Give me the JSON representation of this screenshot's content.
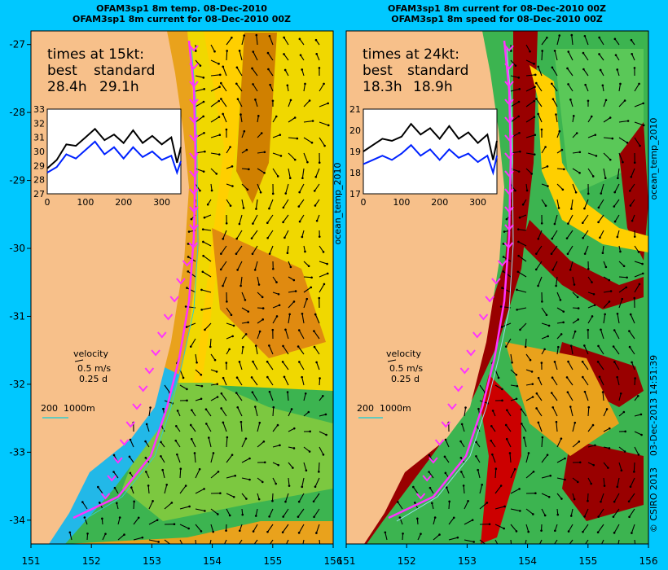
{
  "colors": {
    "background": "#00c8ff",
    "land": "#f7c08a",
    "track": "#ff33ff",
    "best_line": "#000000",
    "standard_line": "#0022ff",
    "isobath": "#33cccc"
  },
  "credits": {
    "copyright": "© CSIRO 2013",
    "timestamp": "03-Dec-2013 14:51:39"
  },
  "panels": [
    {
      "title_line1": "OFAM3sp1 8m temp. 08-Dec-2010",
      "title_line2": "OFAM3sp1 8m current for 08-Dec-2010 00Z",
      "side_label": "ocean_temp_2010",
      "times_heading": "times at 15kt:",
      "best_label": "best",
      "standard_label": "standard",
      "best_time": "28.4h",
      "standard_time": "29.1h",
      "velocity_label": "velocity",
      "velocity_speed": "0.5 m/s",
      "velocity_time": "0.25 d",
      "isobath_label": "200  1000m",
      "x_ticks": [
        "151",
        "152",
        "153",
        "154",
        "155",
        "156"
      ],
      "y_ticks": [
        "-27",
        "-28",
        "-29",
        "-30",
        "-31",
        "-32",
        "-33",
        "-34"
      ],
      "inset": {
        "y_ticks": [
          "27",
          "28",
          "29",
          "30",
          "31",
          "32",
          "33"
        ],
        "x_ticks": [
          "0",
          "100",
          "200",
          "300"
        ]
      }
    },
    {
      "title_line1": "OFAM3sp1 8m current for 08-Dec-2010 00Z",
      "title_line2": "OFAM3sp1 8m speed for 08-Dec-2010 00Z",
      "side_label": "ocean_temp_2010",
      "times_heading": "times at 24kt:",
      "best_label": "best",
      "standard_label": "standard",
      "best_time": "18.3h",
      "standard_time": "18.9h",
      "velocity_label": "velocity",
      "velocity_speed": "0.5 m/s",
      "velocity_time": "0.25 d",
      "isobath_label": "200  1000m",
      "x_ticks": [
        "151",
        "152",
        "153",
        "154",
        "155",
        "156"
      ],
      "y_ticks": [],
      "inset": {
        "y_ticks": [
          "17",
          "18",
          "19",
          "20",
          "21"
        ],
        "x_ticks": [
          "0",
          "100",
          "200",
          "300"
        ]
      }
    }
  ],
  "chart_data": [
    {
      "type": "heatmap",
      "title": "OFAM3sp1 8m temp. 08-Dec-2010",
      "field": "ocean temperature with current vectors",
      "xlim": [
        151,
        156
      ],
      "ylim": [
        -34.35,
        -26.8
      ],
      "inset": {
        "type": "line",
        "xlim": [
          0,
          350
        ],
        "ylim": [
          27,
          33
        ],
        "series": [
          {
            "name": "best",
            "x": [
              0,
              25,
              50,
              75,
              100,
              125,
              150,
              175,
              200,
              225,
              250,
              275,
              300,
              325,
              340,
              350
            ],
            "values": [
              28.8,
              29.4,
              30.5,
              30.4,
              31.0,
              31.6,
              30.8,
              31.2,
              30.6,
              31.5,
              30.6,
              31.1,
              30.5,
              31.0,
              29.2,
              30.3
            ]
          },
          {
            "name": "standard",
            "x": [
              0,
              25,
              50,
              75,
              100,
              125,
              150,
              175,
              200,
              225,
              250,
              275,
              300,
              325,
              340,
              350
            ],
            "values": [
              28.5,
              28.9,
              29.8,
              29.5,
              30.1,
              30.7,
              29.8,
              30.3,
              29.5,
              30.3,
              29.6,
              30.0,
              29.4,
              29.7,
              28.5,
              29.3
            ]
          }
        ]
      }
    },
    {
      "type": "heatmap",
      "title": "OFAM3sp1 8m speed for 08-Dec-2010 00Z",
      "field": "current speed with current vectors",
      "xlim": [
        151,
        156
      ],
      "ylim": [
        -34.35,
        -26.8
      ],
      "inset": {
        "type": "line",
        "xlim": [
          0,
          350
        ],
        "ylim": [
          17,
          21
        ],
        "series": [
          {
            "name": "best",
            "x": [
              0,
              25,
              50,
              75,
              100,
              125,
              150,
              175,
              200,
              225,
              250,
              275,
              300,
              325,
              340,
              350
            ],
            "values": [
              19.0,
              19.3,
              19.6,
              19.5,
              19.7,
              20.3,
              19.8,
              20.1,
              19.6,
              20.2,
              19.6,
              19.9,
              19.4,
              19.8,
              18.6,
              19.5
            ]
          },
          {
            "name": "standard",
            "x": [
              0,
              25,
              50,
              75,
              100,
              125,
              150,
              175,
              200,
              225,
              250,
              275,
              300,
              325,
              340,
              350
            ],
            "values": [
              18.4,
              18.6,
              18.8,
              18.6,
              18.9,
              19.3,
              18.8,
              19.1,
              18.6,
              19.1,
              18.7,
              18.9,
              18.5,
              18.8,
              18.0,
              18.8
            ]
          }
        ]
      }
    }
  ]
}
